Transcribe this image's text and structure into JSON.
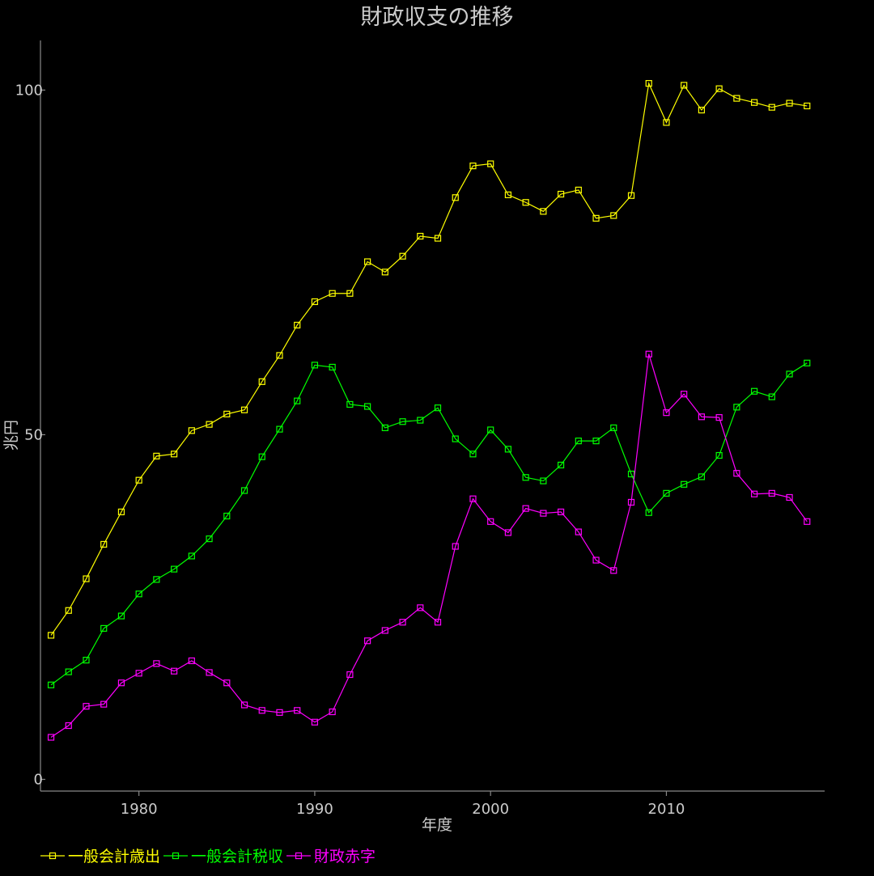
{
  "chart_data": {
    "type": "line",
    "title": "財政収支の推移",
    "xlabel": "年度",
    "ylabel": "兆円",
    "xlim": [
      1974.4,
      2019.0
    ],
    "ylim": [
      -1.7,
      107.2
    ],
    "x_ticks": [
      1980,
      1990,
      2000,
      2010
    ],
    "y_ticks": [
      0,
      50,
      100
    ],
    "grid": false,
    "legend_position": "bottom-left",
    "colors": {
      "background": "#000000",
      "text": "#cccccc",
      "axis": "#888888"
    },
    "x": [
      1975,
      1976,
      1977,
      1978,
      1979,
      1980,
      1981,
      1982,
      1983,
      1984,
      1985,
      1986,
      1987,
      1988,
      1989,
      1990,
      1991,
      1992,
      1993,
      1994,
      1995,
      1996,
      1997,
      1998,
      1999,
      2000,
      2001,
      2002,
      2003,
      2004,
      2005,
      2006,
      2007,
      2008,
      2009,
      2010,
      2011,
      2012,
      2013,
      2014,
      2015,
      2016,
      2017,
      2018
    ],
    "series": [
      {
        "name": "一般会計歳出",
        "color": "#ffff00",
        "values": [
          20.9,
          24.5,
          29.1,
          34.1,
          38.8,
          43.4,
          46.9,
          47.2,
          50.6,
          51.5,
          53.0,
          53.6,
          57.7,
          61.5,
          65.9,
          69.3,
          70.5,
          70.5,
          75.1,
          73.6,
          75.9,
          78.8,
          78.5,
          84.4,
          89.0,
          89.3,
          84.8,
          83.7,
          82.4,
          84.9,
          85.5,
          81.4,
          81.8,
          84.7,
          100.97,
          95.3,
          100.7,
          97.1,
          100.2,
          98.8,
          98.2,
          97.5,
          98.1,
          97.7
        ]
      },
      {
        "name": "一般会計税収",
        "color": "#00ff00",
        "values": [
          13.7,
          15.6,
          17.3,
          21.9,
          23.7,
          26.9,
          29.0,
          30.5,
          32.4,
          34.9,
          38.2,
          41.9,
          46.8,
          50.8,
          54.9,
          60.1,
          59.8,
          54.4,
          54.1,
          51.0,
          51.9,
          52.1,
          53.9,
          49.4,
          47.2,
          50.7,
          47.9,
          43.8,
          43.3,
          45.6,
          49.1,
          49.1,
          51.0,
          44.3,
          38.7,
          41.5,
          42.8,
          43.9,
          47.0,
          54.0,
          56.3,
          55.5,
          58.8,
          60.4
        ]
      },
      {
        "name": "財政赤字",
        "color": "#ff00ff",
        "values": [
          6.1,
          7.8,
          10.6,
          10.9,
          14.0,
          15.4,
          16.8,
          15.7,
          17.2,
          15.5,
          14.0,
          10.8,
          10.0,
          9.7,
          10.0,
          8.3,
          9.8,
          15.2,
          20.1,
          21.6,
          22.8,
          24.9,
          22.8,
          33.8,
          40.7,
          37.4,
          35.8,
          39.3,
          38.6,
          38.8,
          35.9,
          31.8,
          30.3,
          40.2,
          61.7,
          53.2,
          55.9,
          52.6,
          52.5,
          44.4,
          41.4,
          41.5,
          40.9,
          37.4
        ]
      }
    ]
  }
}
